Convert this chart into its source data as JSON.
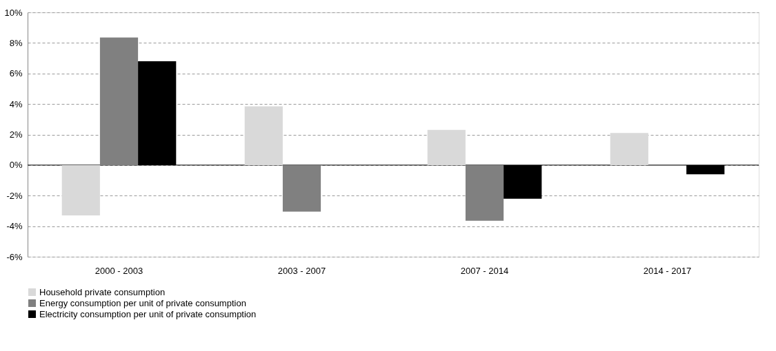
{
  "chart_data": {
    "type": "bar",
    "categories": [
      "2000 - 2003",
      "2003 - 2007",
      "2007 - 2014",
      "2014 - 2017"
    ],
    "series": [
      {
        "name": "Household private consumption",
        "color": "#d9d9d9",
        "values": [
          -3.3,
          3.85,
          2.3,
          2.1
        ]
      },
      {
        "name": "Energy consumption per unit of private consumption",
        "color": "#808080",
        "values": [
          8.35,
          -3.05,
          -3.65,
          -0.05
        ]
      },
      {
        "name": "Electricity consumption per unit of private consumption",
        "color": "#000000",
        "values": [
          6.8,
          null,
          -2.2,
          -0.6
        ]
      }
    ],
    "ylim": [
      -6,
      10
    ],
    "yticks": [
      {
        "value": -6,
        "label": "-6%"
      },
      {
        "value": -4,
        "label": "-4%"
      },
      {
        "value": -2,
        "label": "-2%"
      },
      {
        "value": 0,
        "label": "0%"
      },
      {
        "value": 2,
        "label": "2%"
      },
      {
        "value": 4,
        "label": "4%"
      },
      {
        "value": 6,
        "label": "6%"
      },
      {
        "value": 8,
        "label": "8%"
      },
      {
        "value": 10,
        "label": "10%"
      }
    ],
    "grid": "y",
    "legend": "bottom"
  }
}
